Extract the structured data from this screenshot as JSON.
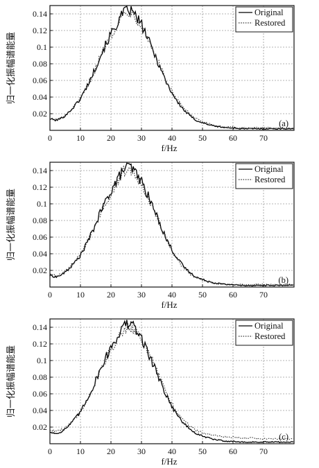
{
  "figure": {
    "panels": [
      "a",
      "b",
      "c"
    ]
  },
  "chart_data": [
    {
      "type": "line",
      "panel_label": "(a)",
      "xlabel": "f/Hz",
      "ylabel": "归一化振幅谱能量",
      "xlim": [
        0,
        80
      ],
      "ylim": [
        0,
        0.15
      ],
      "xticks": [
        "0",
        "10",
        "20",
        "30",
        "40",
        "50",
        "60",
        "70"
      ],
      "yticks": [
        "0.02",
        "0.04",
        "0.06",
        "0.08",
        "0.1",
        "0.12",
        "0.14"
      ],
      "grid": true,
      "legend_position": "top-right",
      "series": [
        {
          "name": "Original",
          "style": "solid",
          "color": "#000000",
          "x": [
            0,
            2,
            4,
            6,
            8,
            10,
            12,
            14,
            16,
            18,
            20,
            22,
            24,
            26,
            28,
            30,
            32,
            34,
            36,
            38,
            40,
            42,
            44,
            46,
            48,
            50,
            52,
            54,
            56,
            58,
            60,
            62,
            64,
            66,
            68,
            70,
            72,
            74,
            76,
            78
          ],
          "y": [
            0.014,
            0.012,
            0.015,
            0.021,
            0.029,
            0.038,
            0.052,
            0.067,
            0.085,
            0.101,
            0.116,
            0.128,
            0.141,
            0.145,
            0.138,
            0.127,
            0.111,
            0.094,
            0.077,
            0.059,
            0.045,
            0.033,
            0.024,
            0.017,
            0.012,
            0.009,
            0.007,
            0.005,
            0.004,
            0.003,
            0.003,
            0.002,
            0.002,
            0.002,
            0.002,
            0.002,
            0.002,
            0.002,
            0.002,
            0.002
          ]
        },
        {
          "name": "Restored",
          "style": "dotted",
          "color": "#333333",
          "x": [
            0,
            2,
            4,
            6,
            8,
            10,
            12,
            14,
            16,
            18,
            20,
            22,
            24,
            26,
            28,
            30,
            32,
            34,
            36,
            38,
            40,
            42,
            44,
            46,
            48,
            50,
            52,
            54,
            56,
            58,
            60,
            62,
            64,
            66,
            68,
            70,
            72,
            74,
            76,
            78
          ],
          "y": [
            0.014,
            0.013,
            0.015,
            0.021,
            0.029,
            0.038,
            0.051,
            0.066,
            0.084,
            0.1,
            0.115,
            0.127,
            0.139,
            0.143,
            0.137,
            0.126,
            0.111,
            0.095,
            0.078,
            0.061,
            0.046,
            0.035,
            0.026,
            0.019,
            0.014,
            0.01,
            0.008,
            0.006,
            0.005,
            0.004,
            0.004,
            0.003,
            0.003,
            0.003,
            0.003,
            0.003,
            0.003,
            0.003,
            0.003,
            0.003
          ]
        }
      ]
    },
    {
      "type": "line",
      "panel_label": "(b)",
      "xlabel": "f/Hz",
      "ylabel": "归一化振幅谱能量",
      "xlim": [
        0,
        80
      ],
      "ylim": [
        0,
        0.15
      ],
      "xticks": [
        "0",
        "10",
        "20",
        "30",
        "40",
        "50",
        "60",
        "70"
      ],
      "yticks": [
        "0.02",
        "0.04",
        "0.06",
        "0.08",
        "0.1",
        "0.12",
        "0.14"
      ],
      "grid": true,
      "legend_position": "top-right",
      "series": [
        {
          "name": "Original",
          "style": "solid",
          "color": "#000000",
          "x": [
            0,
            2,
            4,
            6,
            8,
            10,
            12,
            14,
            16,
            18,
            20,
            22,
            24,
            26,
            28,
            30,
            32,
            34,
            36,
            38,
            40,
            42,
            44,
            46,
            48,
            50,
            52,
            54,
            56,
            58,
            60,
            62,
            64,
            66,
            68,
            70,
            72,
            74,
            76,
            78
          ],
          "y": [
            0.014,
            0.012,
            0.015,
            0.021,
            0.029,
            0.038,
            0.052,
            0.067,
            0.085,
            0.101,
            0.116,
            0.128,
            0.141,
            0.145,
            0.138,
            0.127,
            0.111,
            0.094,
            0.077,
            0.059,
            0.045,
            0.033,
            0.024,
            0.017,
            0.012,
            0.009,
            0.007,
            0.005,
            0.004,
            0.003,
            0.003,
            0.002,
            0.002,
            0.002,
            0.002,
            0.002,
            0.002,
            0.002,
            0.002,
            0.002
          ]
        },
        {
          "name": "Restored",
          "style": "dotted",
          "color": "#333333",
          "x": [
            0,
            2,
            4,
            6,
            8,
            10,
            12,
            14,
            16,
            18,
            20,
            22,
            24,
            26,
            28,
            30,
            32,
            34,
            36,
            38,
            40,
            42,
            44,
            46,
            48,
            50,
            52,
            54,
            56,
            58,
            60,
            62,
            64,
            66,
            68,
            70,
            72,
            74,
            76,
            78
          ],
          "y": [
            0.016,
            0.014,
            0.016,
            0.022,
            0.03,
            0.039,
            0.052,
            0.067,
            0.084,
            0.1,
            0.114,
            0.126,
            0.138,
            0.142,
            0.136,
            0.125,
            0.11,
            0.093,
            0.076,
            0.058,
            0.043,
            0.031,
            0.022,
            0.015,
            0.011,
            0.008,
            0.006,
            0.004,
            0.003,
            0.003,
            0.003,
            0.003,
            0.003,
            0.003,
            0.003,
            0.003,
            0.003,
            0.003,
            0.003,
            0.003
          ]
        }
      ]
    },
    {
      "type": "line",
      "panel_label": "(c)",
      "xlabel": "f/Hz",
      "ylabel": "归一化振幅谱能量",
      "xlim": [
        0,
        80
      ],
      "ylim": [
        0,
        0.15
      ],
      "xticks": [
        "0",
        "10",
        "20",
        "30",
        "40",
        "50",
        "60",
        "70"
      ],
      "yticks": [
        "0.02",
        "0.04",
        "0.06",
        "0.08",
        "0.1",
        "0.12",
        "0.14"
      ],
      "grid": true,
      "legend_position": "top-right",
      "series": [
        {
          "name": "Original",
          "style": "solid",
          "color": "#000000",
          "x": [
            0,
            2,
            4,
            6,
            8,
            10,
            12,
            14,
            16,
            18,
            20,
            22,
            24,
            26,
            28,
            30,
            32,
            34,
            36,
            38,
            40,
            42,
            44,
            46,
            48,
            50,
            52,
            54,
            56,
            58,
            60,
            62,
            64,
            66,
            68,
            70,
            72,
            74,
            76,
            78
          ],
          "y": [
            0.014,
            0.012,
            0.015,
            0.021,
            0.029,
            0.038,
            0.052,
            0.067,
            0.085,
            0.101,
            0.116,
            0.128,
            0.141,
            0.145,
            0.138,
            0.127,
            0.111,
            0.094,
            0.077,
            0.059,
            0.045,
            0.033,
            0.024,
            0.017,
            0.012,
            0.009,
            0.007,
            0.005,
            0.004,
            0.003,
            0.003,
            0.002,
            0.002,
            0.002,
            0.002,
            0.002,
            0.002,
            0.002,
            0.002,
            0.002
          ]
        },
        {
          "name": "Restored",
          "style": "dotted",
          "color": "#333333",
          "x": [
            0,
            2,
            4,
            6,
            8,
            10,
            12,
            14,
            16,
            18,
            20,
            22,
            24,
            26,
            28,
            30,
            32,
            34,
            36,
            38,
            40,
            42,
            44,
            46,
            48,
            50,
            52,
            54,
            56,
            58,
            60,
            62,
            64,
            66,
            68,
            70,
            72,
            74,
            76,
            78
          ],
          "y": [
            0.017,
            0.015,
            0.017,
            0.022,
            0.03,
            0.039,
            0.051,
            0.066,
            0.083,
            0.099,
            0.113,
            0.126,
            0.137,
            0.142,
            0.137,
            0.127,
            0.112,
            0.096,
            0.079,
            0.062,
            0.048,
            0.036,
            0.027,
            0.021,
            0.016,
            0.013,
            0.011,
            0.01,
            0.009,
            0.008,
            0.008,
            0.007,
            0.007,
            0.007,
            0.006,
            0.006,
            0.006,
            0.006,
            0.006,
            0.006
          ]
        }
      ]
    }
  ]
}
